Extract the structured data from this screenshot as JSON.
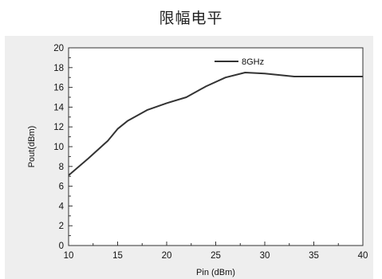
{
  "page": {
    "title": "限幅电平"
  },
  "chart_data": {
    "type": "line",
    "title": "",
    "xlabel": "Pin (dBm)",
    "ylabel": "Pout(dBm)",
    "xlim": [
      10,
      40
    ],
    "ylim": [
      0,
      20
    ],
    "x_ticks": [
      10,
      15,
      20,
      25,
      30,
      35,
      40
    ],
    "y_ticks": [
      0,
      2,
      4,
      6,
      8,
      10,
      12,
      14,
      16,
      18,
      20
    ],
    "grid": false,
    "legend_position": "top-right",
    "series": [
      {
        "name": "8GHz",
        "color": "#333333",
        "x": [
          10,
          12,
          14,
          15,
          16,
          18,
          20,
          22,
          24,
          26,
          28,
          30,
          32,
          33,
          35,
          40
        ],
        "y": [
          7.1,
          8.8,
          10.6,
          11.8,
          12.6,
          13.7,
          14.4,
          15.0,
          16.1,
          17.0,
          17.5,
          17.4,
          17.2,
          17.1,
          17.1,
          17.1
        ]
      }
    ]
  }
}
